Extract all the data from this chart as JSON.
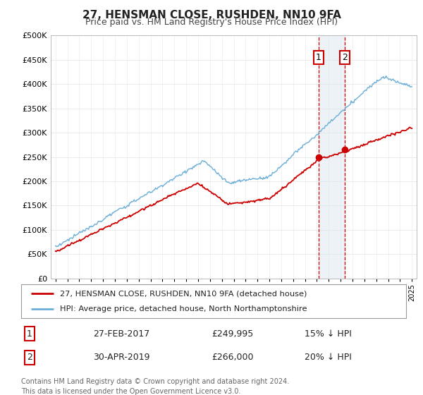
{
  "title": "27, HENSMAN CLOSE, RUSHDEN, NN10 9FA",
  "subtitle": "Price paid vs. HM Land Registry's House Price Index (HPI)",
  "legend_line1": "27, HENSMAN CLOSE, RUSHDEN, NN10 9FA (detached house)",
  "legend_line2": "HPI: Average price, detached house, North Northamptonshire",
  "sale1_label": "1",
  "sale1_date": "27-FEB-2017",
  "sale1_price": "£249,995",
  "sale1_hpi": "15% ↓ HPI",
  "sale2_label": "2",
  "sale2_date": "30-APR-2019",
  "sale2_price": "£266,000",
  "sale2_hpi": "20% ↓ HPI",
  "footer": "Contains HM Land Registry data © Crown copyright and database right 2024.\nThis data is licensed under the Open Government Licence v3.0.",
  "hpi_color": "#6baed6",
  "price_color": "#cc0000",
  "sale_marker_color": "#cc0000",
  "highlight_color": "#dce6f1",
  "sale1_x": 2017.15,
  "sale2_x": 2019.33,
  "sale1_price_val": 249995,
  "sale2_price_val": 266000,
  "ylim_min": 0,
  "ylim_max": 500000,
  "xlim_min": 1994.6,
  "xlim_max": 2025.4
}
